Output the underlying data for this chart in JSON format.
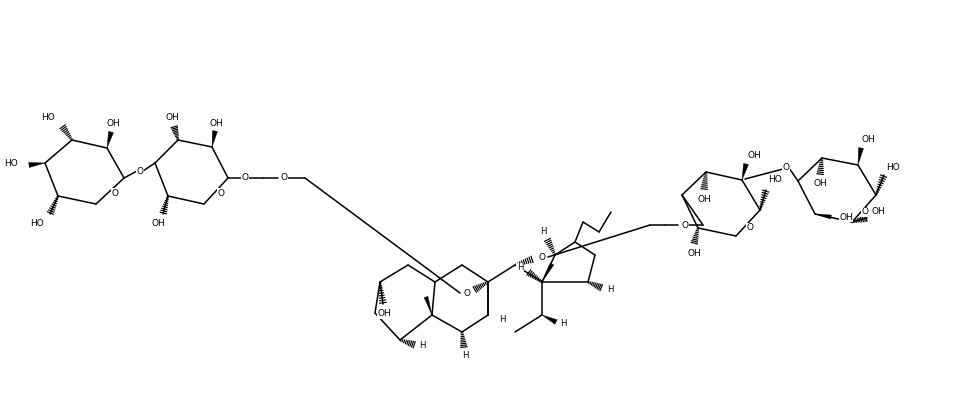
{
  "background_color": "#ffffff",
  "line_color": "#000000",
  "lw": 1.1,
  "fig_width": 9.74,
  "fig_height": 4.04,
  "dpi": 100,
  "xlim": [
    0,
    974
  ],
  "ylim": [
    0,
    404
  ]
}
